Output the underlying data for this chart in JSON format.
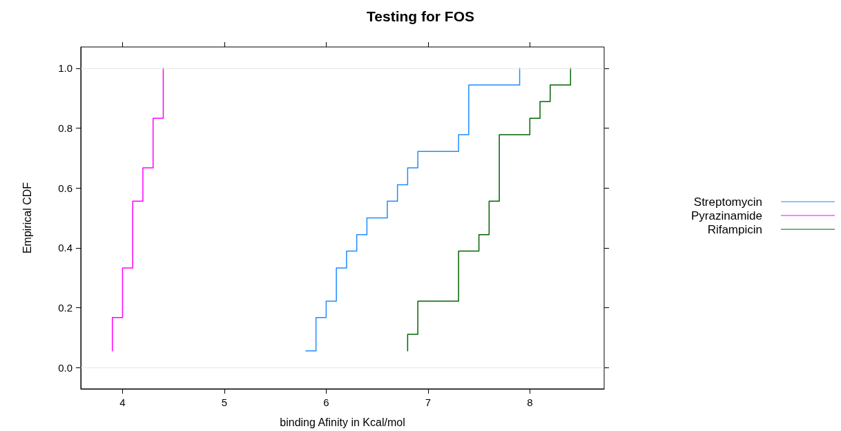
{
  "chart_data": {
    "type": "step",
    "title": "Testing for FOS",
    "xlabel": "binding Afinity in Kcal/mol",
    "ylabel": "Empirical CDF",
    "series": [
      {
        "name": "Streptomycin",
        "color": "#1e8cff",
        "x": [
          5.8,
          5.9,
          6.0,
          6.1,
          6.2,
          6.3,
          6.4,
          6.6,
          6.7,
          6.8,
          6.9,
          7.3,
          7.4,
          7.9
        ],
        "values": [
          0.056,
          0.167,
          0.222,
          0.333,
          0.389,
          0.444,
          0.5,
          0.556,
          0.611,
          0.667,
          0.722,
          0.778,
          0.944,
          1.0
        ]
      },
      {
        "name": "Pyrazinamide",
        "color": "#ff00ff",
        "x": [
          3.9,
          3.9,
          4.0,
          4.1,
          4.2,
          4.3,
          4.4
        ],
        "values": [
          0.056,
          0.167,
          0.333,
          0.556,
          0.667,
          0.833,
          1.0
        ]
      },
      {
        "name": "Rifampicin",
        "color": "#006400",
        "x": [
          6.8,
          6.8,
          6.9,
          7.3,
          7.5,
          7.6,
          7.7,
          8.0,
          8.1,
          8.2,
          8.4
        ],
        "values": [
          0.056,
          0.111,
          0.222,
          0.389,
          0.444,
          0.556,
          0.778,
          0.833,
          0.889,
          0.944,
          1.0
        ]
      }
    ],
    "xlim": [
      3.59,
      8.73
    ],
    "xticks": [
      4,
      5,
      6,
      7,
      8
    ],
    "ylim": [
      -0.071,
      1.071
    ],
    "yticks": [
      {
        "value": 0,
        "label": "0.0"
      },
      0.2,
      0.4,
      0.6,
      0.8,
      {
        "value": 1,
        "label": "1.0"
      }
    ],
    "ref_lines": [
      {
        "axis": "y",
        "value": 0,
        "color": "#e6e6e6"
      },
      {
        "axis": "y",
        "value": 1,
        "color": "#e6e6e6"
      }
    ],
    "grid": false,
    "legend": "right",
    "marker": "none",
    "line_style": "solid"
  }
}
